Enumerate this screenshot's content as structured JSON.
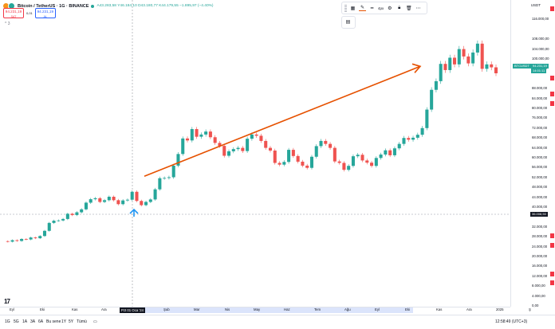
{
  "symbol": {
    "title": "Bitcoin / TetherUS · 1G · BINANCE",
    "ohlc": "A43.283,58 Y46.184,10 D43.180,77 K44.179,55 −1.895,97 (−4.40%)",
    "sell": {
      "price": "94.231,19",
      "label": "SAT"
    },
    "spread": "0,01",
    "buy": {
      "price": "94.231,19",
      "label": "AL"
    },
    "indicator_toggle": "^ 3"
  },
  "draw_toolbar": {
    "width_label": "4px"
  },
  "currency": "USDT",
  "price_scale": {
    "labels": [
      "116.000,00",
      "108.000,00",
      "104.000,00",
      "100.000,00",
      "96.000,00",
      "88.000,00",
      "84.000,00",
      "80.000,00",
      "76.000,00",
      "72.000,00",
      "68.000,00",
      "64.000,00",
      "60.000,00",
      "56.000,00",
      "52.000,00",
      "48.000,00",
      "44.000,00",
      "40.000,00",
      "32.000,00",
      "28.000,00",
      "24.000,00",
      "20.000,00",
      "16.000,00",
      "12.000,00",
      "8.000,00",
      "4.000,00",
      "0,00"
    ],
    "symbol_tag": "BTCUSDT",
    "last_price": "94.231,19",
    "countdown": "14:01:11",
    "crosshair_price": "36.008,50"
  },
  "time_axis": {
    "labels": [
      "Eyl",
      "Eki",
      "Kas",
      "Ara",
      "Şub",
      "Mar",
      "Nis",
      "May",
      "Haz",
      "Tem",
      "Ağu",
      "Eyl",
      "Eki",
      "Kas",
      "Ara",
      "2025",
      "Ş"
    ],
    "selected": "Pzt 01 Oca '24"
  },
  "bottom_bar": {
    "ranges": [
      "1G",
      "5G",
      "1A",
      "3A",
      "6A",
      "Bu sene",
      "1Y",
      "5Y",
      "Tümü"
    ],
    "clock": "12:58:49 (UTC+3)"
  },
  "colors": {
    "up": "#26a69a",
    "down": "#ef5350",
    "arrow": "#e65100",
    "accent": "#2962ff"
  },
  "chart_data": {
    "type": "candlestick",
    "y_axis_range": [
      0,
      118000
    ],
    "title": "",
    "trend_line": {
      "from_price": 52500,
      "to_price": 97000
    },
    "series": [
      {
        "values": [
          26200,
          26000,
          26600,
          26300,
          27100,
          26900,
          27700,
          27400,
          28300,
          30400,
          33600,
          34500,
          34600,
          35200,
          37300,
          36800,
          37900,
          39100,
          41800,
          43200,
          43600,
          42100,
          42800,
          44200,
          42800,
          41200,
          42700,
          43000,
          46200,
          42500,
          40800,
          42100,
          43100,
          47200,
          51700,
          51800,
          52100,
          56800,
          61500,
          67800,
          67000,
          71600,
          68500,
          69400,
          70600,
          68300,
          66000,
          64800,
          60800,
          62600,
          63500,
          64000,
          62700,
          67700,
          69400,
          68900,
          66800,
          64000,
          62900,
          57900,
          57200,
          58300,
          63200,
          60700,
          58400,
          56800,
          55900,
          60400,
          64700,
          66800,
          65600,
          64000,
          58500,
          57900,
          55100,
          56700,
          60600,
          61200,
          58900,
          58000,
          56700,
          59900,
          61300,
          63000,
          61000,
          63800,
          65600,
          68000,
          67300,
          68100,
          69300,
          72000,
          79500,
          87500,
          91000,
          98000,
          95500,
          100500,
          97800,
          104000,
          101000,
          98200,
          102600,
          106200,
          96000,
          97800,
          96600,
          94200
        ]
      }
    ]
  }
}
